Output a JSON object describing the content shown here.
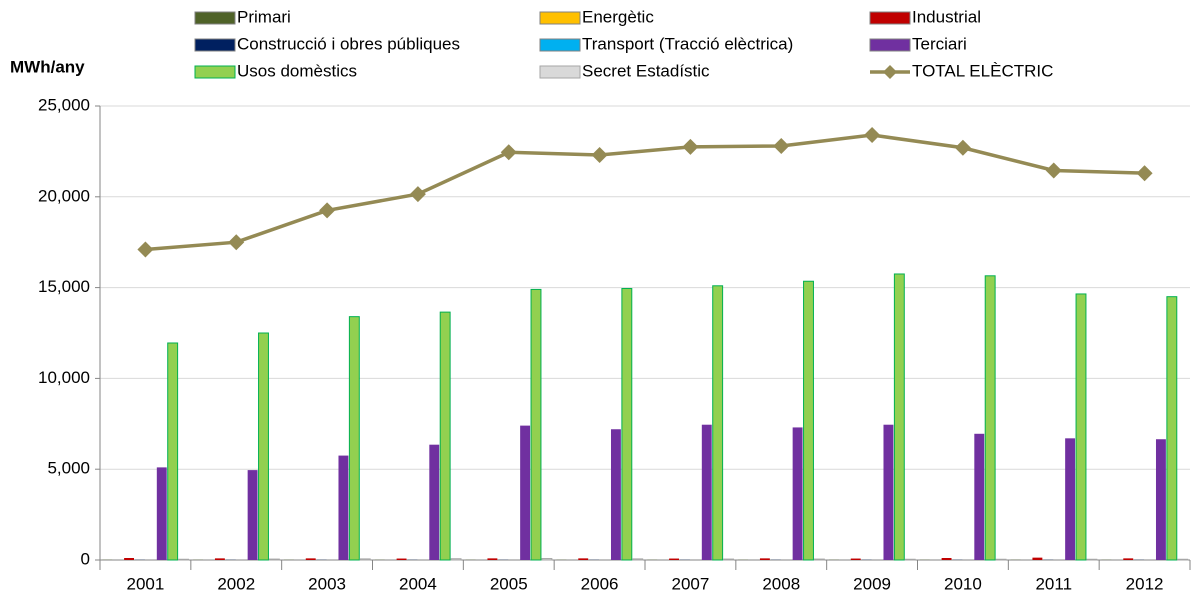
{
  "chart_data": {
    "type": "bar",
    "y_label": "MWh/any",
    "categories": [
      "2001",
      "2002",
      "2003",
      "2004",
      "2005",
      "2006",
      "2007",
      "2008",
      "2009",
      "2010",
      "2011",
      "2012"
    ],
    "series": [
      {
        "name": "Primari",
        "color": "#4f6228",
        "values": [
          10,
          10,
          10,
          10,
          10,
          10,
          10,
          10,
          10,
          10,
          10,
          10
        ]
      },
      {
        "name": "Energètic",
        "color": "#ffc000",
        "values": [
          0,
          0,
          0,
          0,
          0,
          0,
          0,
          0,
          0,
          0,
          0,
          0
        ]
      },
      {
        "name": "Industrial",
        "color": "#c00000",
        "values": [
          110,
          90,
          90,
          80,
          90,
          90,
          80,
          90,
          80,
          110,
          130,
          90
        ]
      },
      {
        "name": "Construcció i obres públiques",
        "color": "#002060",
        "values": [
          10,
          10,
          10,
          10,
          10,
          10,
          10,
          10,
          10,
          10,
          10,
          10
        ]
      },
      {
        "name": "Transport (Tracció elèctrica)",
        "color": "#00b0f0",
        "values": [
          0,
          0,
          0,
          0,
          0,
          0,
          0,
          0,
          0,
          0,
          0,
          0
        ]
      },
      {
        "name": "Terciari",
        "color": "#7030a0",
        "values": [
          5100,
          4950,
          5750,
          6350,
          7400,
          7200,
          7450,
          7300,
          7450,
          6950,
          6700,
          6650
        ]
      },
      {
        "name": "Usos domèstics",
        "color": "#92d050",
        "values": [
          11950,
          12500,
          13400,
          13650,
          14900,
          14950,
          15100,
          15350,
          15750,
          15650,
          14650,
          14500
        ]
      },
      {
        "name": "Secret Estadístic",
        "color": "#d9d9d9",
        "values": [
          40,
          50,
          60,
          70,
          80,
          60,
          50,
          50,
          40,
          40,
          40,
          40
        ]
      },
      {
        "name": "TOTAL ELÈCTRIC",
        "color": "#948a54",
        "type": "line",
        "values": [
          17100,
          17500,
          19250,
          20150,
          22450,
          22300,
          22750,
          22800,
          23400,
          22700,
          21450,
          21300
        ]
      }
    ],
    "ylim": [
      0,
      25000
    ],
    "yticks": [
      0,
      {
        "value": 5000,
        "label": "5,000"
      },
      {
        "value": 10000,
        "label": "10,000"
      },
      {
        "value": 15000,
        "label": "15,000"
      },
      {
        "value": 20000,
        "label": "20,000"
      },
      {
        "value": 25000,
        "label": "25,000"
      }
    ],
    "grid": true,
    "legend": "top"
  }
}
